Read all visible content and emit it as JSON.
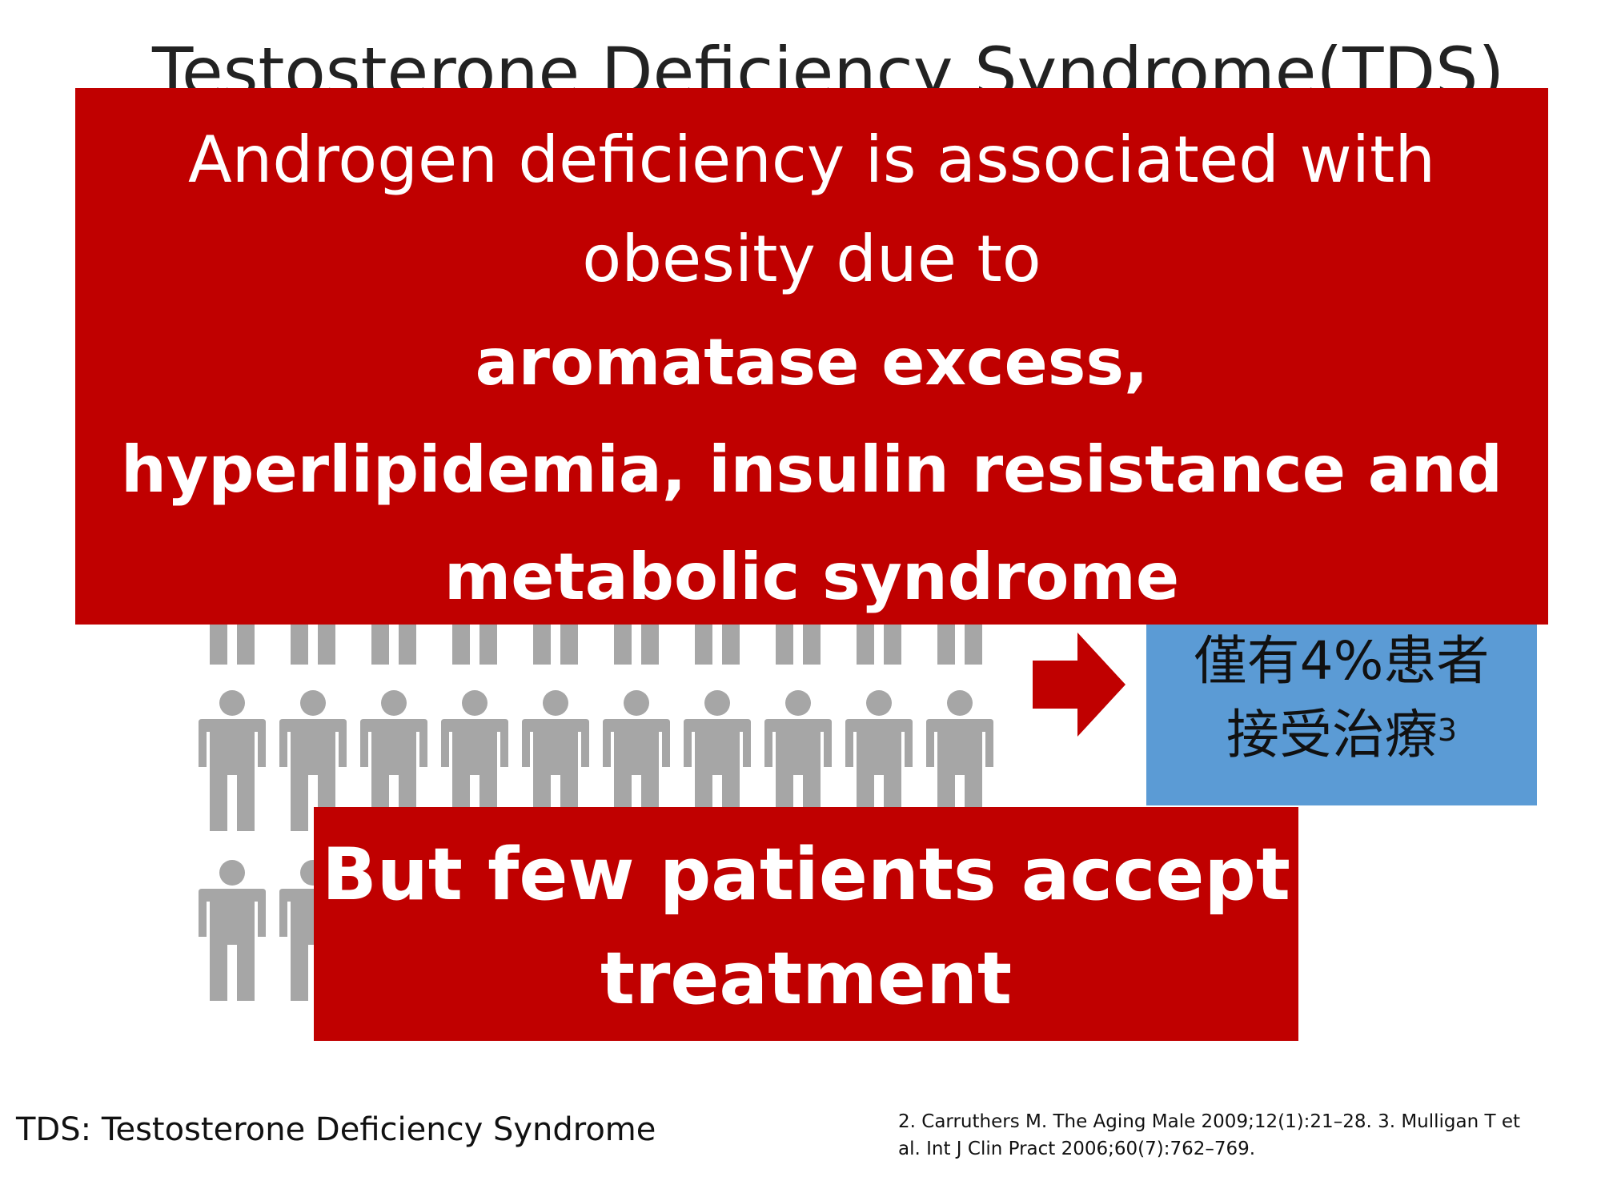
{
  "slide": {
    "title": "Testosterone Deficiency Syndrome(TDS)"
  },
  "callout_top": {
    "line1": "Androgen deficiency is associated with",
    "line2": "obesity due to",
    "line3": "aromatase excess,",
    "line4": "hyperlipidemia, insulin resistance and",
    "line5": "metabolic syndrome"
  },
  "callout_bottom": {
    "line1": "But few patients accept",
    "line2": "treatment"
  },
  "info_box": {
    "line1": "僅有4%患者",
    "line2": "接受治療",
    "footnote_mark": "3"
  },
  "footer": {
    "abbreviation": "TDS: Testosterone Deficiency Syndrome",
    "references": "2. Carruthers M. The Aging Male 2009;12(1):21–28. 3. Mulligan T et al. Int J Clin Pract 2006;60(7):762–769."
  },
  "colors": {
    "callout_red": "#c00000",
    "info_blue": "#5b9bd5",
    "person_gray": "#a6a6a6",
    "person_highlight": "#ffc000"
  },
  "people_grid": {
    "rows": 3,
    "columns": 10,
    "highlighted": [
      [
        2,
        9
      ]
    ]
  }
}
